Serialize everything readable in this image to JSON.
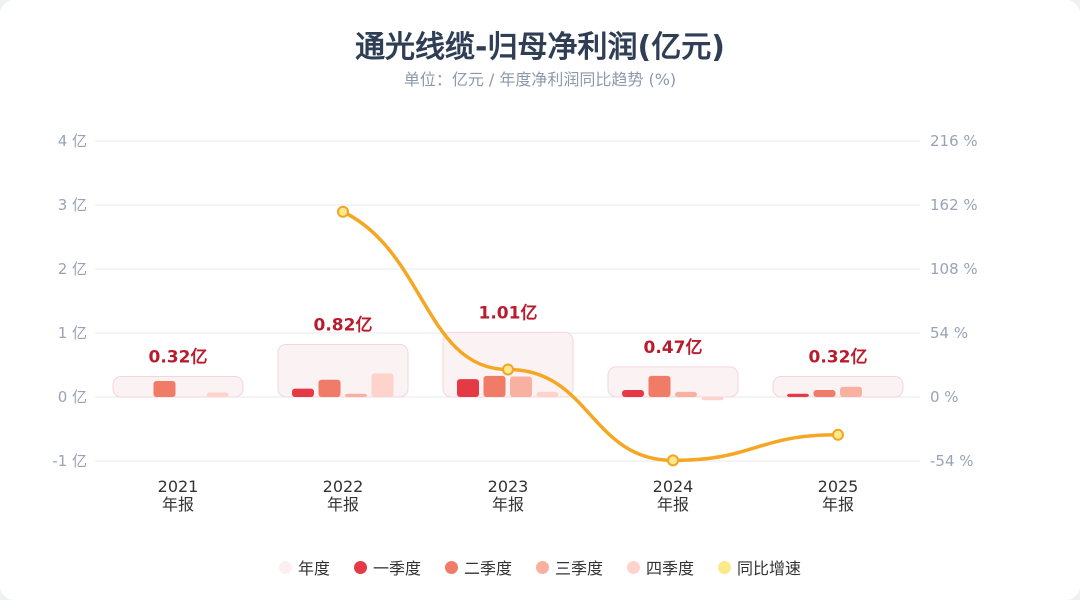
{
  "title": "通光线缆-归母净利润(亿元)",
  "subtitle": "单位：亿元 / 年度净利润同比趋势 (%)",
  "legend": [
    {
      "label": "年度",
      "color": "#fbeff2"
    },
    {
      "label": "一季度",
      "color": "#e63946"
    },
    {
      "label": "二季度",
      "color": "#f07b67"
    },
    {
      "label": "三季度",
      "color": "#f8b0a0"
    },
    {
      "label": "四季度",
      "color": "#fdd3cc"
    },
    {
      "label": "同比增速",
      "color": "#fbe98a"
    }
  ],
  "chart_data": {
    "type": "bar",
    "categories": [
      "2021",
      "2022",
      "2023",
      "2024",
      "2025"
    ],
    "category_sub": "年报",
    "annual": [
      0.32,
      0.82,
      1.01,
      0.47,
      0.32
    ],
    "annual_labels": [
      "0.32亿",
      "0.82亿",
      "1.01亿",
      "0.47亿",
      "0.32亿"
    ],
    "series": [
      {
        "name": "一季度",
        "values": [
          0,
          0.13,
          0.28,
          0.11,
          0.05
        ]
      },
      {
        "name": "二季度",
        "values": [
          0.25,
          0.27,
          0.33,
          0.33,
          0.11
        ]
      },
      {
        "name": "三季度",
        "values": [
          0,
          0.05,
          0.32,
          0.08,
          0.16
        ]
      },
      {
        "name": "四季度",
        "values": [
          0.07,
          0.37,
          0.08,
          -0.05,
          null
        ]
      }
    ],
    "yoy": {
      "name": "同比增速",
      "values": [
        null,
        156.3,
        23.2,
        -53.5,
        -31.9
      ]
    },
    "yticks_left": [
      "4 亿",
      "3 亿",
      "2 亿",
      "1 亿",
      "0 亿",
      "-1 亿"
    ],
    "yticks_right": [
      "216 %",
      "162 %",
      "108 %",
      "54 %",
      "0 %",
      "-54 %"
    ],
    "ylim": [
      -1,
      4
    ],
    "ylim_right": [
      -54,
      216
    ]
  }
}
